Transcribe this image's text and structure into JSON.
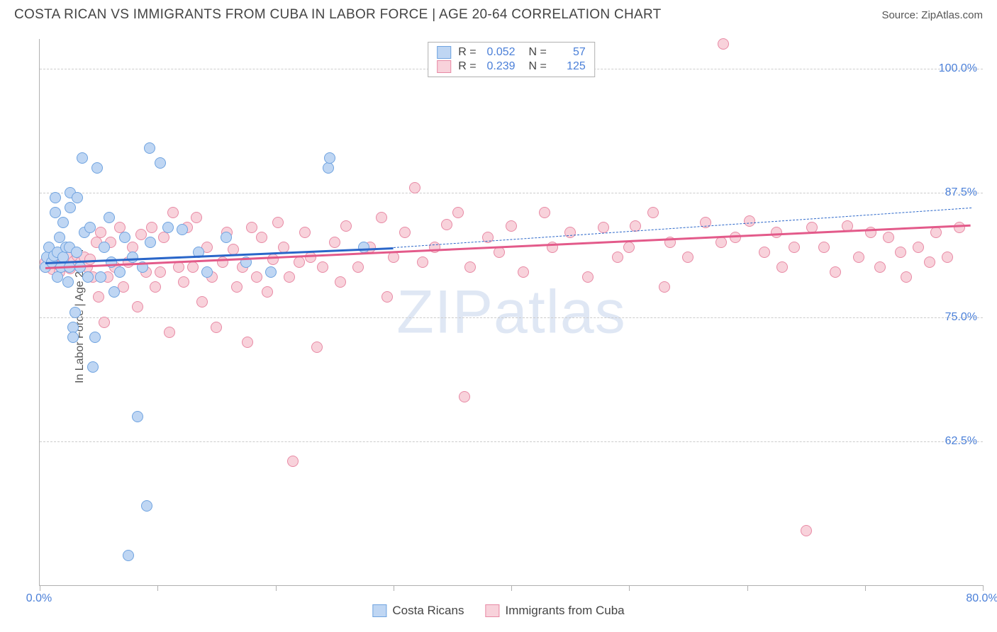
{
  "title": "COSTA RICAN VS IMMIGRANTS FROM CUBA IN LABOR FORCE | AGE 20-64 CORRELATION CHART",
  "source": "Source: ZipAtlas.com",
  "watermark": "ZIPatlas",
  "chart": {
    "type": "scatter",
    "background_color": "#ffffff",
    "grid_color": "#cccccc",
    "axis_color": "#b0b0b0",
    "y_axis_label": "In Labor Force | Age 20-64",
    "label_fontsize": 16,
    "label_color": "#555555",
    "tick_label_color": "#4a7fd8",
    "tick_fontsize": 16,
    "xlim": [
      0,
      80
    ],
    "ylim": [
      48,
      103
    ],
    "x_ticks": [
      0,
      10,
      20,
      30,
      40,
      50,
      60,
      70,
      80
    ],
    "x_tick_labels": {
      "0": "0.0%",
      "80": "80.0%"
    },
    "y_gridlines": [
      62.5,
      75.0,
      87.5,
      100.0
    ],
    "y_tick_labels": [
      "62.5%",
      "75.0%",
      "87.5%",
      "100.0%"
    ],
    "marker_radius": 8,
    "marker_stroke_width": 1.5,
    "series": [
      {
        "name": "Costa Ricans",
        "color_fill": "#bfd6f3",
        "color_stroke": "#6fa3e0",
        "r_value": "0.052",
        "n_value": "57",
        "trend": {
          "x1": 0.5,
          "y1": 80.5,
          "x2": 30,
          "y2": 82.0,
          "extend_x2": 79,
          "extend_y2": 86.0,
          "color": "#2a66c9",
          "width": 2.5
        },
        "points": [
          [
            0.5,
            80
          ],
          [
            0.6,
            81
          ],
          [
            0.8,
            82
          ],
          [
            1.0,
            80.5
          ],
          [
            1.2,
            81.2
          ],
          [
            1.3,
            85.5
          ],
          [
            1.3,
            87
          ],
          [
            1.5,
            79
          ],
          [
            1.5,
            81.5
          ],
          [
            1.7,
            83
          ],
          [
            1.8,
            80
          ],
          [
            2.0,
            81
          ],
          [
            2.0,
            84.5
          ],
          [
            2.2,
            82
          ],
          [
            2.4,
            78.5
          ],
          [
            2.5,
            80
          ],
          [
            2.5,
            82
          ],
          [
            2.6,
            86
          ],
          [
            2.6,
            87.5
          ],
          [
            2.8,
            74
          ],
          [
            2.8,
            73
          ],
          [
            3.0,
            75.5
          ],
          [
            3.1,
            81.5
          ],
          [
            3.2,
            87
          ],
          [
            3.4,
            80
          ],
          [
            3.6,
            91
          ],
          [
            3.8,
            83.5
          ],
          [
            4.1,
            79
          ],
          [
            4.3,
            84
          ],
          [
            4.5,
            70
          ],
          [
            4.7,
            73
          ],
          [
            4.9,
            90
          ],
          [
            5.2,
            79
          ],
          [
            5.5,
            82
          ],
          [
            5.9,
            85
          ],
          [
            6.1,
            80.5
          ],
          [
            6.3,
            77.5
          ],
          [
            6.8,
            79.5
          ],
          [
            7.2,
            83
          ],
          [
            7.5,
            51
          ],
          [
            7.9,
            81
          ],
          [
            8.3,
            65
          ],
          [
            8.7,
            80
          ],
          [
            9.1,
            56
          ],
          [
            9.3,
            92
          ],
          [
            9.4,
            82.5
          ],
          [
            10.2,
            90.5
          ],
          [
            10.9,
            84
          ],
          [
            12.1,
            83.8
          ],
          [
            13.5,
            81.5
          ],
          [
            14.2,
            79.5
          ],
          [
            15.8,
            83
          ],
          [
            17.5,
            80.5
          ],
          [
            19.6,
            79.5
          ],
          [
            24.5,
            90
          ],
          [
            24.6,
            91
          ],
          [
            27.5,
            82
          ]
        ]
      },
      {
        "name": "Immigrants from Cuba",
        "color_fill": "#f8d2db",
        "color_stroke": "#e88aa5",
        "r_value": "0.239",
        "n_value": "125",
        "trend": {
          "x1": 0.5,
          "y1": 80.0,
          "x2": 79,
          "y2": 84.3,
          "color": "#e35a8a",
          "width": 2.5
        },
        "points": [
          [
            0.5,
            80
          ],
          [
            0.5,
            80.5
          ],
          [
            0.8,
            81
          ],
          [
            0.9,
            80
          ],
          [
            1.1,
            79.8
          ],
          [
            1.3,
            80.5
          ],
          [
            1.5,
            80.3
          ],
          [
            1.7,
            79.5
          ],
          [
            2.0,
            80.8
          ],
          [
            2.2,
            80.3
          ],
          [
            2.4,
            81
          ],
          [
            2.6,
            79.9
          ],
          [
            2.9,
            80.6
          ],
          [
            3.2,
            81.2
          ],
          [
            3.5,
            80.5
          ],
          [
            3.8,
            81
          ],
          [
            4.0,
            80
          ],
          [
            4.3,
            80.8
          ],
          [
            4.5,
            79
          ],
          [
            4.8,
            82.5
          ],
          [
            5.0,
            77
          ],
          [
            5.2,
            83.5
          ],
          [
            5.5,
            74.5
          ],
          [
            5.8,
            79
          ],
          [
            6.0,
            82.5
          ],
          [
            6.4,
            80
          ],
          [
            6.8,
            84
          ],
          [
            7.1,
            78
          ],
          [
            7.5,
            80.5
          ],
          [
            7.9,
            82
          ],
          [
            8.3,
            76
          ],
          [
            8.6,
            83.3
          ],
          [
            9.0,
            79.5
          ],
          [
            9.5,
            84
          ],
          [
            9.8,
            78
          ],
          [
            10.2,
            79.5
          ],
          [
            10.5,
            83
          ],
          [
            11.0,
            73.5
          ],
          [
            11.3,
            85.5
          ],
          [
            11.8,
            80
          ],
          [
            12.2,
            78.5
          ],
          [
            12.5,
            84
          ],
          [
            13.0,
            80
          ],
          [
            13.3,
            85
          ],
          [
            13.8,
            76.5
          ],
          [
            14.2,
            82
          ],
          [
            14.6,
            79
          ],
          [
            15.0,
            74
          ],
          [
            15.5,
            80.5
          ],
          [
            15.9,
            83.5
          ],
          [
            16.4,
            81.8
          ],
          [
            16.7,
            78
          ],
          [
            17.2,
            80
          ],
          [
            17.6,
            72.5
          ],
          [
            18.0,
            84
          ],
          [
            18.4,
            79
          ],
          [
            18.8,
            83
          ],
          [
            19.3,
            77.5
          ],
          [
            19.8,
            80.8
          ],
          [
            20.2,
            84.5
          ],
          [
            20.7,
            82
          ],
          [
            21.2,
            79
          ],
          [
            21.5,
            60.5
          ],
          [
            22.0,
            80.5
          ],
          [
            22.5,
            83.5
          ],
          [
            23.0,
            81
          ],
          [
            23.5,
            72
          ],
          [
            24.0,
            80
          ],
          [
            25.0,
            82.5
          ],
          [
            25.5,
            78.5
          ],
          [
            26.0,
            84.2
          ],
          [
            27.0,
            80
          ],
          [
            28.0,
            82
          ],
          [
            29.0,
            85
          ],
          [
            29.5,
            77
          ],
          [
            30.0,
            81
          ],
          [
            31.0,
            83.5
          ],
          [
            31.8,
            88
          ],
          [
            32.5,
            80.5
          ],
          [
            33.5,
            82
          ],
          [
            34.5,
            84.3
          ],
          [
            35.5,
            85.5
          ],
          [
            36.0,
            67
          ],
          [
            36.5,
            80
          ],
          [
            38.0,
            83
          ],
          [
            39.0,
            81.5
          ],
          [
            40.0,
            84.2
          ],
          [
            41.0,
            79.5
          ],
          [
            42.8,
            85.5
          ],
          [
            43.5,
            82
          ],
          [
            45.0,
            83.5
          ],
          [
            46.5,
            79
          ],
          [
            47.8,
            84
          ],
          [
            49.0,
            81
          ],
          [
            50.0,
            82
          ],
          [
            50.5,
            84.2
          ],
          [
            52.0,
            85.5
          ],
          [
            53.0,
            78
          ],
          [
            53.5,
            82.5
          ],
          [
            55.0,
            81
          ],
          [
            56.5,
            84.5
          ],
          [
            57.8,
            82.5
          ],
          [
            58.0,
            102.5
          ],
          [
            59.0,
            83
          ],
          [
            60.2,
            84.7
          ],
          [
            61.5,
            81.5
          ],
          [
            62.5,
            83.5
          ],
          [
            63.0,
            80
          ],
          [
            64.0,
            82
          ],
          [
            65.0,
            53.5
          ],
          [
            65.5,
            84
          ],
          [
            66.5,
            82
          ],
          [
            67.5,
            79.5
          ],
          [
            68.5,
            84.2
          ],
          [
            69.5,
            81
          ],
          [
            70.5,
            83.5
          ],
          [
            71.3,
            80
          ],
          [
            72.0,
            83
          ],
          [
            73.0,
            81.5
          ],
          [
            73.5,
            79
          ],
          [
            74.5,
            82
          ],
          [
            75.5,
            80.5
          ],
          [
            76.0,
            83.5
          ],
          [
            77.0,
            81
          ],
          [
            78.0,
            84
          ]
        ]
      }
    ]
  },
  "legend_bottom": {
    "items": [
      "Costa Ricans",
      "Immigrants from Cuba"
    ]
  }
}
